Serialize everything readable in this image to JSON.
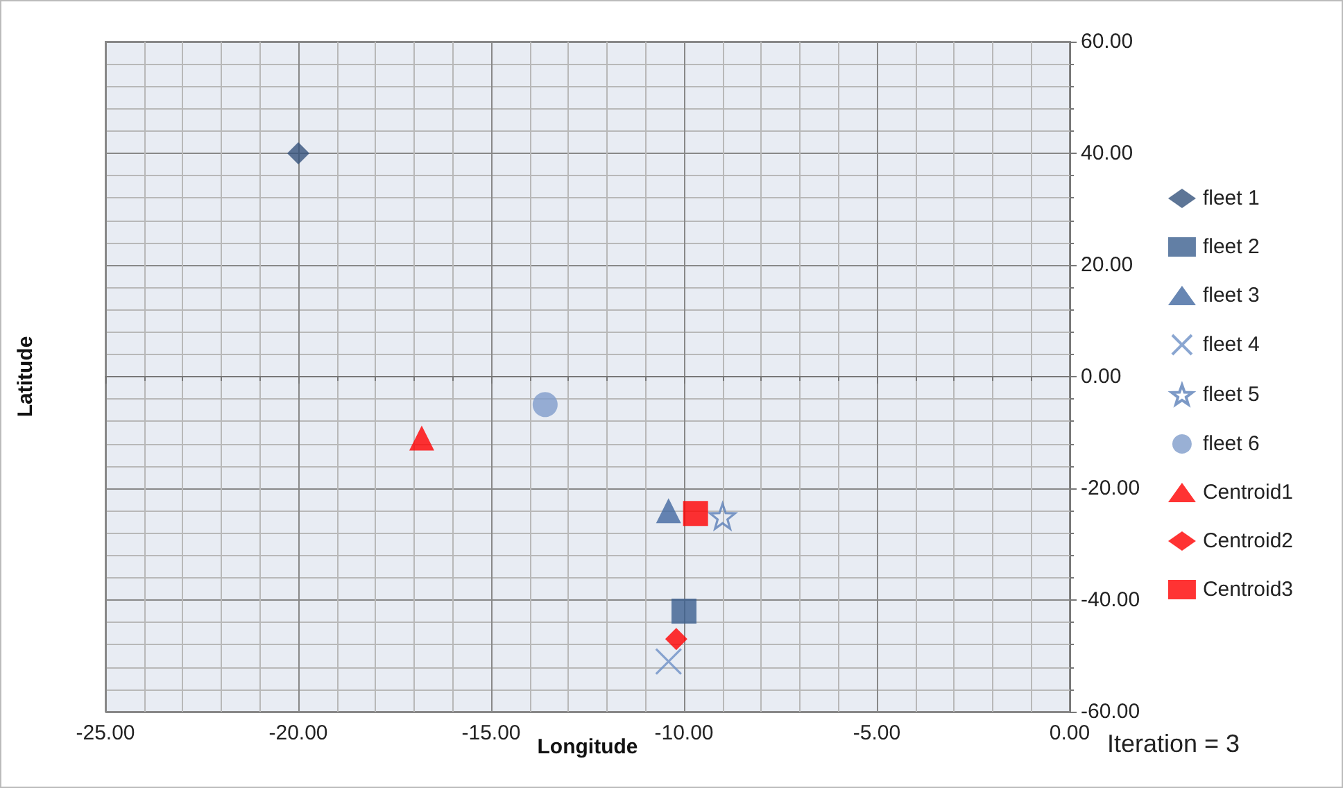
{
  "chart_data": {
    "type": "scatter",
    "xlabel": "Longitude",
    "ylabel": "Latitude",
    "xlim": [
      -25,
      0
    ],
    "ylim": [
      -60,
      60
    ],
    "xticks": [
      {
        "value": -25,
        "label": "-25.00"
      },
      {
        "value": -20,
        "label": "-20.00"
      },
      {
        "value": -15,
        "label": "-15.00"
      },
      {
        "value": -10,
        "label": "-10.00"
      },
      {
        "value": -5,
        "label": "-5.00"
      },
      {
        "value": 0,
        "label": "0.00"
      }
    ],
    "yticks": [
      {
        "value": -60,
        "label": "-60.00"
      },
      {
        "value": -40,
        "label": "-40.00"
      },
      {
        "value": -20,
        "label": "-20.00"
      },
      {
        "value": 0,
        "label": "0.00"
      },
      {
        "value": 20,
        "label": "20.00"
      },
      {
        "value": 40,
        "label": "40.00"
      },
      {
        "value": 60,
        "label": "60.00"
      }
    ],
    "grid": true,
    "legend": "right",
    "annotations": [
      "Iteration = 3"
    ],
    "series": [
      {
        "name": "fleet 1",
        "color": "#34527c",
        "marker": "diamond",
        "x": [
          -20
        ],
        "values": [
          40
        ]
      },
      {
        "name": "fleet 2",
        "color": "#3b5f8f",
        "marker": "square",
        "x": [
          -10
        ],
        "values": [
          -42
        ]
      },
      {
        "name": "fleet 3",
        "color": "#4168a0",
        "marker": "triangle",
        "x": [
          -10.4
        ],
        "values": [
          -24
        ]
      },
      {
        "name": "fleet 4",
        "color": "#6d90c6",
        "marker": "cross",
        "x": [
          -10.4
        ],
        "values": [
          -51
        ]
      },
      {
        "name": "fleet 5",
        "color": "#5b80b8",
        "marker": "star",
        "x": [
          -9
        ],
        "values": [
          -25
        ]
      },
      {
        "name": "fleet 6",
        "color": "#7f9ccb",
        "marker": "circle",
        "x": [
          -13.6
        ],
        "values": [
          -5
        ]
      },
      {
        "name": "Centroid1",
        "color": "#ff0000",
        "marker": "triangle",
        "x": [
          -16.8
        ],
        "values": [
          -11
        ]
      },
      {
        "name": "Centroid2",
        "color": "#ff0000",
        "marker": "diamond",
        "x": [
          -10.2
        ],
        "values": [
          -47
        ]
      },
      {
        "name": "Centroid3",
        "color": "#ff0000",
        "marker": "square",
        "x": [
          -9.7
        ],
        "values": [
          -24.5
        ]
      }
    ]
  }
}
